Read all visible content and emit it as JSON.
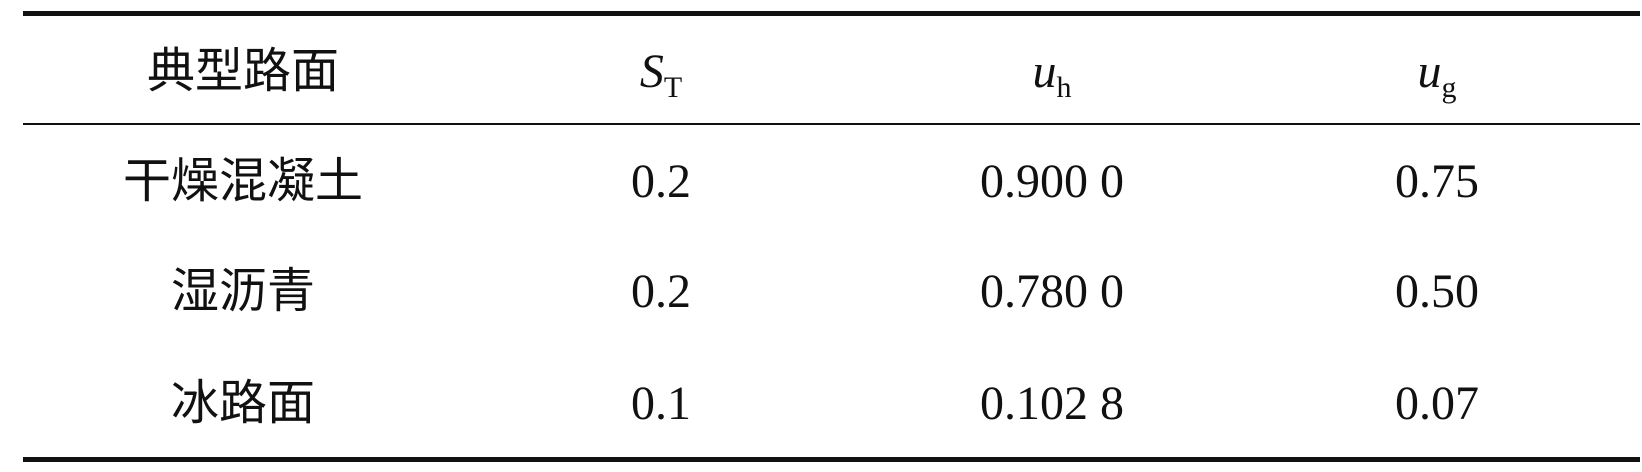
{
  "table": {
    "header": [
      "典型路面",
      {
        "symbol": "S",
        "sub": "T"
      },
      {
        "symbol": "u",
        "sub": "h"
      },
      {
        "symbol": "u",
        "sub": "g"
      }
    ],
    "rows": [
      [
        "干燥混凝土",
        "0.2",
        "0.900 0",
        "0.75"
      ],
      [
        "湿沥青",
        "0.2",
        "0.780 0",
        "0.50"
      ],
      [
        "冰路面",
        "0.1",
        "0.102 8",
        "0.07"
      ]
    ]
  }
}
